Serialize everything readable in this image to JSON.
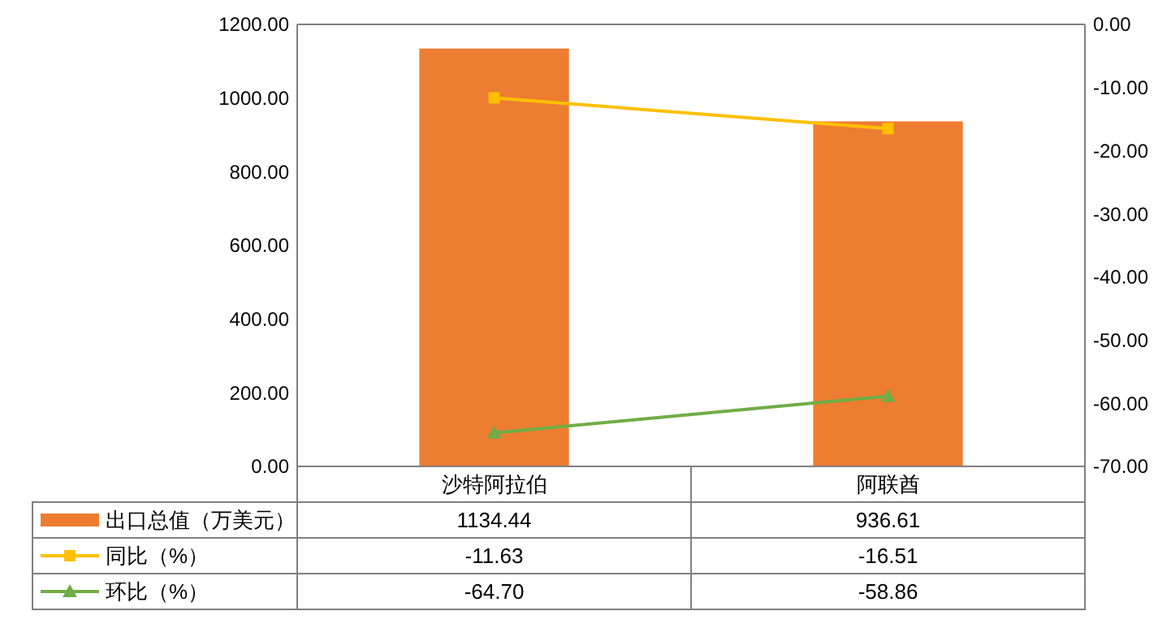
{
  "chart_data": {
    "type": "bar",
    "categories": [
      "沙特阿拉伯",
      "阿联酋"
    ],
    "series": [
      {
        "name": "出口总值（万美元）",
        "type": "bar",
        "color": "#ed7d31",
        "values": [
          1134.44,
          936.61
        ],
        "value_labels": [
          "1134.44",
          "936.61"
        ]
      },
      {
        "name": "同比（%）",
        "type": "line",
        "axis": "y2",
        "color": "#ffc000",
        "marker": "square",
        "values": [
          -11.63,
          -16.51
        ],
        "value_labels": [
          "-11.63",
          "-16.51"
        ]
      },
      {
        "name": "环比（%）",
        "type": "line",
        "axis": "y2",
        "color": "#70ad47",
        "marker": "triangle",
        "values": [
          -64.7,
          -58.86
        ],
        "value_labels": [
          "-64.70",
          "-58.86"
        ]
      }
    ],
    "ylim": [
      0,
      1200
    ],
    "yticks": [
      {
        "value": 0,
        "label": "0.00"
      },
      {
        "value": 200,
        "label": "200.00"
      },
      {
        "value": 400,
        "label": "400.00"
      },
      {
        "value": 600,
        "label": "600.00"
      },
      {
        "value": 800,
        "label": "800.00"
      },
      {
        "value": 1000,
        "label": "1000.00"
      },
      {
        "value": 1200,
        "label": "1200.00"
      }
    ],
    "y2lim": [
      -70,
      0
    ],
    "y2ticks": [
      {
        "value": -70,
        "label": "-70.00"
      },
      {
        "value": -60,
        "label": "-60.00"
      },
      {
        "value": -50,
        "label": "-50.00"
      },
      {
        "value": -40,
        "label": "-40.00"
      },
      {
        "value": -30,
        "label": "-30.00"
      },
      {
        "value": -20,
        "label": "-20.00"
      },
      {
        "value": -10,
        "label": "-10.00"
      },
      {
        "value": 0,
        "label": "0.00"
      }
    ],
    "grid": false,
    "legend": "bottom"
  }
}
